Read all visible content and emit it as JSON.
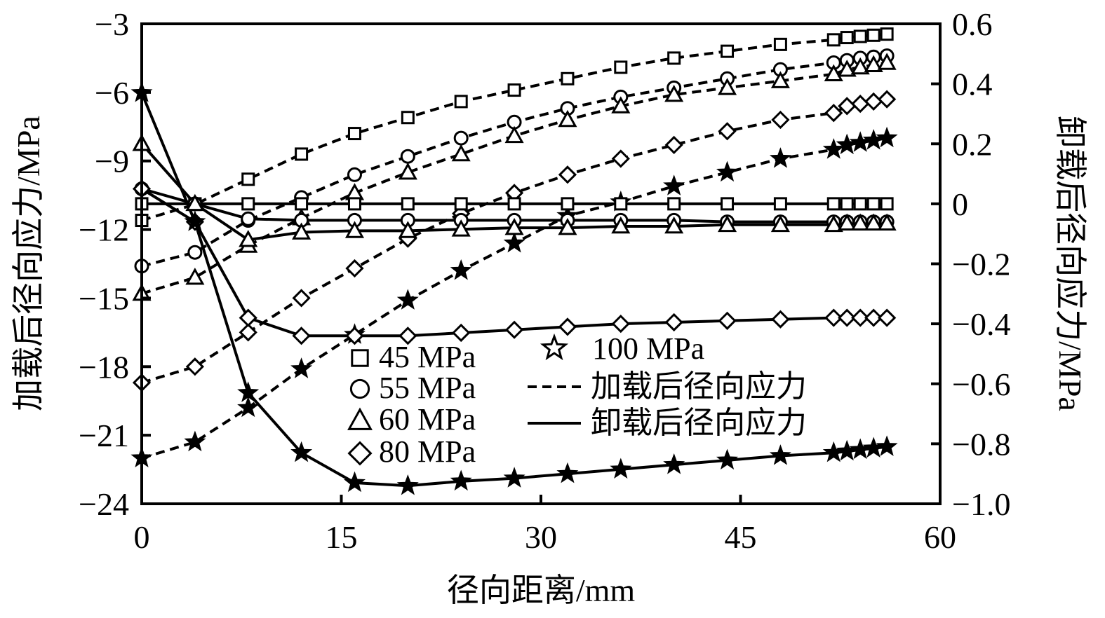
{
  "chart_data": {
    "type": "line",
    "xlabel": "径向距离/mm",
    "ylabel_left": "加载后径向应力/MPa",
    "ylabel_right": "卸载后径向应力/MPa",
    "xlim": [
      0,
      60
    ],
    "ylim_left": [
      -24,
      -3
    ],
    "ylim_right": [
      -1.0,
      0.6
    ],
    "x_ticks": [
      0,
      15,
      30,
      45,
      60
    ],
    "y_left_ticks": [
      -3,
      -6,
      -9,
      -12,
      -15,
      -18,
      -21,
      -24
    ],
    "y_left_tick_labels": [
      "−3",
      "−6",
      "−9",
      "−12",
      "−15",
      "−18",
      "−21",
      "−24"
    ],
    "y_right_ticks": [
      0.6,
      0.4,
      0.2,
      0,
      -0.2,
      -0.4,
      -0.6,
      -0.8,
      -1.0
    ],
    "y_right_tick_labels": [
      "0.6",
      "0.4",
      "0.2",
      "0",
      "−0.2",
      "−0.4",
      "−0.6",
      "−0.8",
      "−1.0"
    ],
    "grid": false,
    "legend": {
      "placement": "lower-center",
      "markers": [
        {
          "marker": "square",
          "label": "45 MPa"
        },
        {
          "marker": "circle",
          "label": "55 MPa"
        },
        {
          "marker": "triangle",
          "label": "60 MPa"
        },
        {
          "marker": "diamond",
          "label": "80 MPa"
        },
        {
          "marker": "star",
          "label": "100 MPa"
        }
      ],
      "lines": [
        {
          "style": "dashed",
          "label": "加载后径向应力"
        },
        {
          "style": "solid",
          "label": "卸载后径向应力"
        }
      ]
    },
    "x": [
      0,
      4,
      8,
      12,
      16,
      20,
      24,
      28,
      32,
      36,
      40,
      44,
      48,
      52,
      53,
      54,
      55,
      56
    ],
    "series": [
      {
        "name": "45 MPa",
        "marker": "square",
        "axis": "left",
        "style": "dashed",
        "values": [
          -11.6,
          -10.9,
          -9.8,
          -8.7,
          -7.8,
          -7.1,
          -6.4,
          -5.9,
          -5.4,
          -4.9,
          -4.5,
          -4.2,
          -3.9,
          -3.7,
          -3.6,
          -3.55,
          -3.5,
          -3.45
        ]
      },
      {
        "name": "55 MPa",
        "marker": "circle",
        "axis": "left",
        "style": "dashed",
        "values": [
          -13.6,
          -13.0,
          -11.6,
          -10.6,
          -9.6,
          -8.8,
          -8.0,
          -7.3,
          -6.7,
          -6.2,
          -5.8,
          -5.4,
          -5.0,
          -4.7,
          -4.6,
          -4.5,
          -4.45,
          -4.4
        ]
      },
      {
        "name": "60 MPa",
        "marker": "triangle",
        "axis": "left",
        "style": "dashed",
        "values": [
          -14.8,
          -14.1,
          -12.7,
          -11.5,
          -10.4,
          -9.5,
          -8.7,
          -7.9,
          -7.2,
          -6.6,
          -6.1,
          -5.8,
          -5.5,
          -5.2,
          -5.0,
          -4.9,
          -4.8,
          -4.7
        ]
      },
      {
        "name": "80 MPa",
        "marker": "diamond",
        "axis": "left",
        "style": "dashed",
        "values": [
          -18.7,
          -18.0,
          -16.5,
          -15.0,
          -13.7,
          -12.4,
          -11.3,
          -10.4,
          -9.6,
          -8.9,
          -8.3,
          -7.7,
          -7.2,
          -6.9,
          -6.6,
          -6.5,
          -6.4,
          -6.3
        ]
      },
      {
        "name": "100 MPa",
        "marker": "star",
        "axis": "left",
        "style": "dashed",
        "values": [
          -22.0,
          -21.3,
          -19.8,
          -18.1,
          -16.6,
          -15.1,
          -13.8,
          -12.6,
          -11.4,
          -10.8,
          -10.1,
          -9.5,
          -8.9,
          -8.5,
          -8.3,
          -8.2,
          -8.1,
          -8.0
        ]
      },
      {
        "name": "45 MPa",
        "marker": "square",
        "axis": "right",
        "style": "solid",
        "values": [
          0.0,
          0.0,
          0.0,
          0.0,
          0.0,
          0.0,
          0.0,
          0.0,
          0.0,
          0.0,
          0.0,
          0.0,
          0.0,
          0.0,
          0.0,
          0.0,
          0.0,
          0.0
        ]
      },
      {
        "name": "55 MPa",
        "marker": "circle",
        "axis": "right",
        "style": "solid",
        "values": [
          0.05,
          0.0,
          -0.05,
          -0.055,
          -0.055,
          -0.055,
          -0.055,
          -0.055,
          -0.055,
          -0.055,
          -0.055,
          -0.06,
          -0.06,
          -0.06,
          -0.06,
          -0.06,
          -0.06,
          -0.06
        ]
      },
      {
        "name": "60 MPa",
        "marker": "triangle",
        "axis": "right",
        "style": "solid",
        "values": [
          0.2,
          0.0,
          -0.12,
          -0.095,
          -0.09,
          -0.09,
          -0.085,
          -0.08,
          -0.08,
          -0.075,
          -0.075,
          -0.07,
          -0.07,
          -0.07,
          -0.065,
          -0.065,
          -0.065,
          -0.065
        ]
      },
      {
        "name": "80 MPa",
        "marker": "diamond",
        "axis": "right",
        "style": "solid",
        "values": [
          0.05,
          -0.06,
          -0.38,
          -0.44,
          -0.44,
          -0.44,
          -0.43,
          -0.42,
          -0.41,
          -0.4,
          -0.395,
          -0.39,
          -0.385,
          -0.38,
          -0.38,
          -0.38,
          -0.38,
          -0.38
        ]
      },
      {
        "name": "100 MPa",
        "marker": "star",
        "axis": "right",
        "style": "solid",
        "values": [
          0.37,
          -0.06,
          -0.63,
          -0.83,
          -0.93,
          -0.94,
          -0.925,
          -0.915,
          -0.9,
          -0.885,
          -0.87,
          -0.855,
          -0.84,
          -0.83,
          -0.825,
          -0.82,
          -0.815,
          -0.81
        ]
      }
    ]
  }
}
